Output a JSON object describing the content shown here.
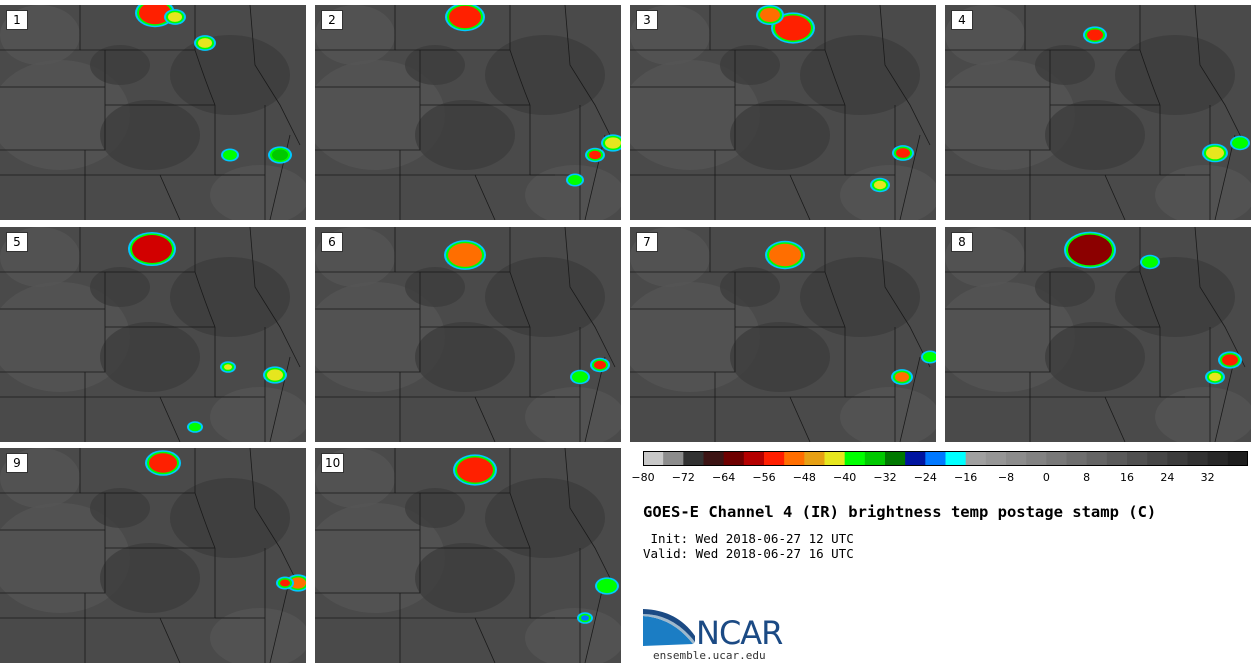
{
  "panels": [
    {
      "label": "1"
    },
    {
      "label": "2"
    },
    {
      "label": "3"
    },
    {
      "label": "4"
    },
    {
      "label": "5"
    },
    {
      "label": "6"
    },
    {
      "label": "7"
    },
    {
      "label": "8"
    },
    {
      "label": "9"
    },
    {
      "label": "10"
    }
  ],
  "colorbar": {
    "colors": [
      "#c8c8c8",
      "#8c8c8c",
      "#323232",
      "#3c1414",
      "#6e0000",
      "#b40000",
      "#ff1e00",
      "#ff6e00",
      "#e6a014",
      "#e6e61e",
      "#00ff00",
      "#00c800",
      "#007800",
      "#0014a0",
      "#0078ff",
      "#00ffff",
      "#a0a0a0",
      "#969696",
      "#8c8c8c",
      "#828282",
      "#787878",
      "#6e6e6e",
      "#646464",
      "#5a5a5a",
      "#505050",
      "#464646",
      "#3c3c3c",
      "#323232",
      "#282828",
      "#1e1e1e"
    ],
    "ticks": [
      "−80",
      "−72",
      "−64",
      "−56",
      "−48",
      "−40",
      "−32",
      "−24",
      "−16",
      "−8",
      "0",
      "8",
      "16",
      "24",
      "32"
    ]
  },
  "title": "GOES-E Channel 4 (IR) brightness temp postage stamp (C)",
  "init": " Init: Wed 2018-06-27 12 UTC",
  "valid": "Valid: Wed 2018-06-27 16 UTC",
  "logo": {
    "text": "NCAR",
    "url": "ensemble.ucar.edu"
  }
}
